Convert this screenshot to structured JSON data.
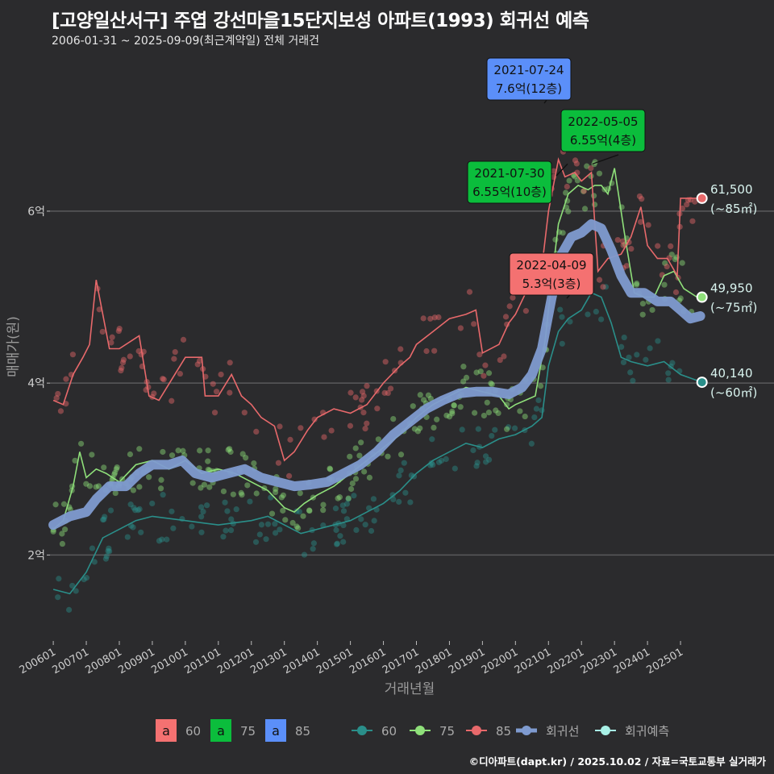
{
  "header": {
    "title": "[고양일산서구] 주엽 강선마을15단지보성 아파트(1993) 회귀선 예측",
    "subtitle": "2006-01-31 ~ 2025-09-09(최근계약일) 전체 거래건"
  },
  "footer": "©디아파트(dapt.kr) / 2025.10.02 / 자료=국토교통부 실거래가",
  "colors": {
    "background": "#2b2b2d",
    "grid": "#5a5a5c",
    "s60": "#2a8f8a",
    "s75": "#8fe07a",
    "s85": "#e8696b",
    "regression": "#7f9bd0",
    "forecast": "#a8f0e6",
    "label60": "#f47171",
    "label75": "#0bbd3c",
    "label85": "#5b8ff9"
  },
  "chart_data": {
    "type": "line",
    "xlabel": "거래년월",
    "ylabel": "매매가(원)",
    "x_ticks": [
      "200601",
      "200701",
      "200801",
      "200901",
      "201001",
      "201101",
      "201201",
      "201301",
      "201401",
      "201501",
      "201601",
      "201701",
      "201801",
      "201901",
      "202001",
      "202101",
      "202201",
      "202301",
      "202401",
      "202501"
    ],
    "y_ticks": [
      {
        "value": 2,
        "label": "2억"
      },
      {
        "value": 4,
        "label": "4억"
      },
      {
        "value": 6,
        "label": "6억"
      }
    ],
    "y_unit": "억",
    "ylim": [
      1.0,
      7.8
    ],
    "xlim": [
      2005.9,
      2026.0
    ],
    "grid": "horizontal",
    "series": [
      {
        "name": "60",
        "key": "s60",
        "points": [
          [
            2006.0,
            1.6
          ],
          [
            2006.5,
            1.55
          ],
          [
            2007.0,
            1.8
          ],
          [
            2007.5,
            2.2
          ],
          [
            2008.0,
            2.3
          ],
          [
            2008.5,
            2.4
          ],
          [
            2009.0,
            2.45
          ],
          [
            2010.0,
            2.4
          ],
          [
            2011.0,
            2.35
          ],
          [
            2012.0,
            2.4
          ],
          [
            2012.5,
            2.45
          ],
          [
            2013.0,
            2.35
          ],
          [
            2013.5,
            2.25
          ],
          [
            2014.0,
            2.3
          ],
          [
            2015.0,
            2.4
          ],
          [
            2015.5,
            2.5
          ],
          [
            2016.0,
            2.6
          ],
          [
            2016.5,
            2.75
          ],
          [
            2017.0,
            2.95
          ],
          [
            2017.5,
            3.1
          ],
          [
            2018.0,
            3.2
          ],
          [
            2018.5,
            3.3
          ],
          [
            2019.0,
            3.25
          ],
          [
            2019.5,
            3.35
          ],
          [
            2020.0,
            3.4
          ],
          [
            2020.5,
            3.5
          ],
          [
            2020.8,
            3.6
          ],
          [
            2021.0,
            4.2
          ],
          [
            2021.3,
            4.6
          ],
          [
            2021.6,
            4.75
          ],
          [
            2022.0,
            4.85
          ],
          [
            2022.3,
            5.05
          ],
          [
            2022.6,
            5.0
          ],
          [
            2022.9,
            4.7
          ],
          [
            2023.2,
            4.3
          ],
          [
            2023.5,
            4.25
          ],
          [
            2024.0,
            4.2
          ],
          [
            2024.5,
            4.25
          ],
          [
            2025.0,
            4.1
          ],
          [
            2025.5,
            4.03
          ]
        ]
      },
      {
        "name": "75",
        "key": "s75",
        "points": [
          [
            2006.0,
            2.3
          ],
          [
            2006.3,
            2.4
          ],
          [
            2006.6,
            2.8
          ],
          [
            2006.8,
            3.2
          ],
          [
            2007.0,
            2.9
          ],
          [
            2007.3,
            3.0
          ],
          [
            2007.6,
            2.95
          ],
          [
            2008.0,
            2.85
          ],
          [
            2008.5,
            3.05
          ],
          [
            2009.0,
            3.1
          ],
          [
            2009.5,
            3.0
          ],
          [
            2010.0,
            3.1
          ],
          [
            2010.5,
            2.95
          ],
          [
            2011.0,
            3.0
          ],
          [
            2011.5,
            2.95
          ],
          [
            2012.0,
            2.85
          ],
          [
            2012.5,
            2.75
          ],
          [
            2013.0,
            2.55
          ],
          [
            2013.3,
            2.5
          ],
          [
            2013.6,
            2.6
          ],
          [
            2014.0,
            2.7
          ],
          [
            2014.5,
            2.8
          ],
          [
            2015.0,
            2.95
          ],
          [
            2015.5,
            3.1
          ],
          [
            2016.0,
            3.25
          ],
          [
            2016.5,
            3.4
          ],
          [
            2017.0,
            3.6
          ],
          [
            2017.5,
            3.75
          ],
          [
            2018.0,
            3.85
          ],
          [
            2018.5,
            3.95
          ],
          [
            2019.0,
            3.9
          ],
          [
            2019.5,
            3.85
          ],
          [
            2019.8,
            3.7
          ],
          [
            2020.0,
            3.75
          ],
          [
            2020.3,
            3.8
          ],
          [
            2020.6,
            3.85
          ],
          [
            2020.9,
            4.5
          ],
          [
            2021.1,
            5.2
          ],
          [
            2021.3,
            5.85
          ],
          [
            2021.6,
            6.2
          ],
          [
            2021.9,
            6.3
          ],
          [
            2022.2,
            6.25
          ],
          [
            2022.4,
            6.3
          ],
          [
            2022.6,
            6.3
          ],
          [
            2022.8,
            6.2
          ],
          [
            2023.0,
            6.5
          ],
          [
            2023.3,
            5.75
          ],
          [
            2023.6,
            5.05
          ],
          [
            2023.9,
            5.0
          ],
          [
            2024.2,
            5.0
          ],
          [
            2024.5,
            5.25
          ],
          [
            2024.8,
            5.3
          ],
          [
            2025.1,
            5.1
          ],
          [
            2025.5,
            5.0
          ]
        ]
      },
      {
        "name": "85",
        "key": "s85",
        "points": [
          [
            2006.0,
            3.8
          ],
          [
            2006.3,
            3.75
          ],
          [
            2006.6,
            4.1
          ],
          [
            2006.9,
            4.3
          ],
          [
            2007.1,
            4.45
          ],
          [
            2007.3,
            5.2
          ],
          [
            2007.7,
            4.4
          ],
          [
            2008.0,
            4.4
          ],
          [
            2008.4,
            4.5
          ],
          [
            2008.6,
            4.55
          ],
          [
            2008.9,
            3.85
          ],
          [
            2009.2,
            3.8
          ],
          [
            2009.6,
            4.05
          ],
          [
            2010.0,
            4.3
          ],
          [
            2010.5,
            4.3
          ],
          [
            2010.6,
            3.85
          ],
          [
            2011.0,
            3.85
          ],
          [
            2011.4,
            4.1
          ],
          [
            2011.7,
            3.85
          ],
          [
            2012.0,
            3.75
          ],
          [
            2012.3,
            3.6
          ],
          [
            2012.7,
            3.5
          ],
          [
            2013.0,
            3.1
          ],
          [
            2013.3,
            3.2
          ],
          [
            2013.7,
            3.45
          ],
          [
            2014.0,
            3.6
          ],
          [
            2014.5,
            3.7
          ],
          [
            2015.0,
            3.65
          ],
          [
            2015.5,
            3.75
          ],
          [
            2016.0,
            4.0
          ],
          [
            2016.5,
            4.2
          ],
          [
            2016.8,
            4.3
          ],
          [
            2017.0,
            4.45
          ],
          [
            2017.5,
            4.6
          ],
          [
            2018.0,
            4.75
          ],
          [
            2018.5,
            4.8
          ],
          [
            2018.8,
            4.85
          ],
          [
            2019.0,
            4.35
          ],
          [
            2019.5,
            4.45
          ],
          [
            2019.8,
            4.7
          ],
          [
            2020.0,
            4.8
          ],
          [
            2020.5,
            5.2
          ],
          [
            2020.8,
            5.35
          ],
          [
            2021.0,
            6.0
          ],
          [
            2021.3,
            6.6
          ],
          [
            2021.5,
            6.4
          ],
          [
            2021.8,
            6.45
          ],
          [
            2022.0,
            6.35
          ],
          [
            2022.3,
            6.45
          ],
          [
            2022.5,
            5.3
          ],
          [
            2022.8,
            5.45
          ],
          [
            2023.2,
            5.5
          ],
          [
            2023.5,
            5.7
          ],
          [
            2023.8,
            6.05
          ],
          [
            2024.0,
            5.6
          ],
          [
            2024.3,
            5.45
          ],
          [
            2024.6,
            5.45
          ],
          [
            2024.9,
            5.25
          ],
          [
            2025.0,
            6.15
          ],
          [
            2025.3,
            6.15
          ],
          [
            2025.6,
            6.15
          ]
        ]
      },
      {
        "name": "회귀선",
        "key": "regression",
        "points": [
          [
            2006.0,
            2.35
          ],
          [
            2006.5,
            2.45
          ],
          [
            2007.0,
            2.5
          ],
          [
            2007.3,
            2.65
          ],
          [
            2007.7,
            2.8
          ],
          [
            2008.2,
            2.8
          ],
          [
            2008.6,
            2.95
          ],
          [
            2009.0,
            3.05
          ],
          [
            2009.5,
            3.05
          ],
          [
            2009.9,
            3.1
          ],
          [
            2010.3,
            2.95
          ],
          [
            2010.8,
            2.9
          ],
          [
            2011.3,
            2.95
          ],
          [
            2011.8,
            3.0
          ],
          [
            2012.3,
            2.9
          ],
          [
            2012.8,
            2.85
          ],
          [
            2013.3,
            2.8
          ],
          [
            2013.8,
            2.82
          ],
          [
            2014.3,
            2.85
          ],
          [
            2014.8,
            2.95
          ],
          [
            2015.3,
            3.05
          ],
          [
            2015.8,
            3.2
          ],
          [
            2016.3,
            3.4
          ],
          [
            2016.8,
            3.55
          ],
          [
            2017.3,
            3.7
          ],
          [
            2017.8,
            3.8
          ],
          [
            2018.3,
            3.88
          ],
          [
            2018.8,
            3.9
          ],
          [
            2019.3,
            3.9
          ],
          [
            2019.8,
            3.87
          ],
          [
            2020.2,
            3.95
          ],
          [
            2020.5,
            4.1
          ],
          [
            2020.8,
            4.4
          ],
          [
            2021.1,
            5.0
          ],
          [
            2021.4,
            5.5
          ],
          [
            2021.7,
            5.7
          ],
          [
            2022.0,
            5.75
          ],
          [
            2022.3,
            5.85
          ],
          [
            2022.6,
            5.8
          ],
          [
            2022.9,
            5.55
          ],
          [
            2023.2,
            5.25
          ],
          [
            2023.5,
            5.05
          ],
          [
            2023.9,
            5.05
          ],
          [
            2024.3,
            4.95
          ],
          [
            2024.7,
            4.95
          ],
          [
            2025.0,
            4.85
          ],
          [
            2025.3,
            4.75
          ],
          [
            2025.6,
            4.78
          ]
        ]
      }
    ],
    "forecast": [
      {
        "series": "85",
        "value_label": "61,500",
        "area_label": "(~85㎡)",
        "x": 2025.65,
        "y": 6.15
      },
      {
        "series": "75",
        "value_label": "49,950",
        "area_label": "(~75㎡)",
        "x": 2025.65,
        "y": 5.0
      },
      {
        "series": "60",
        "value_label": "40,140",
        "area_label": "(~60㎡)",
        "x": 2025.65,
        "y": 4.01
      }
    ],
    "annotations": [
      {
        "date": "2021-07-24",
        "price": "7.6억(12층)",
        "series": "85",
        "x": 2021.56,
        "y": 7.6
      },
      {
        "date": "2022-05-05",
        "price": "6.55억(4층)",
        "series": "75",
        "x": 2022.34,
        "y": 6.55
      },
      {
        "date": "2021-07-30",
        "price": "6.55억(10층)",
        "series": "75",
        "x": 2021.58,
        "y": 6.55
      },
      {
        "date": "2022-04-09",
        "price": "5.3억(3층)",
        "series": "60",
        "x": 2022.27,
        "y": 5.3
      }
    ],
    "legend": {
      "placement": "bottom",
      "label_items": [
        {
          "glyph": "a",
          "name": "60"
        },
        {
          "glyph": "a",
          "name": "75"
        },
        {
          "glyph": "a",
          "name": "85"
        }
      ],
      "line_items": [
        {
          "name": "60"
        },
        {
          "name": "75"
        },
        {
          "name": "85"
        },
        {
          "name": "회귀선"
        },
        {
          "name": "회귀예측"
        }
      ]
    }
  }
}
